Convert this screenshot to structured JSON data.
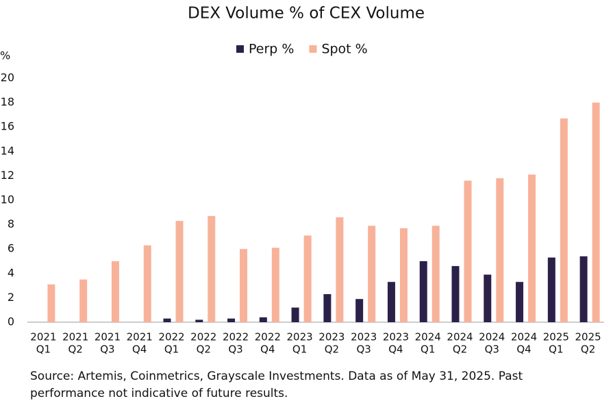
{
  "chart_data": {
    "type": "bar",
    "title": "DEX Volume % of CEX Volume",
    "y_axis_label": "%",
    "categories": [
      [
        "2021",
        "Q1"
      ],
      [
        "2021",
        "Q2"
      ],
      [
        "2021",
        "Q3"
      ],
      [
        "2021",
        "Q4"
      ],
      [
        "2022",
        "Q1"
      ],
      [
        "2022",
        "Q2"
      ],
      [
        "2022",
        "Q3"
      ],
      [
        "2022",
        "Q4"
      ],
      [
        "2023",
        "Q1"
      ],
      [
        "2023",
        "Q2"
      ],
      [
        "2023",
        "Q3"
      ],
      [
        "2023",
        "Q4"
      ],
      [
        "2024",
        "Q1"
      ],
      [
        "2024",
        "Q2"
      ],
      [
        "2024",
        "Q3"
      ],
      [
        "2024",
        "Q4"
      ],
      [
        "2025",
        "Q1"
      ],
      [
        "2025",
        "Q2"
      ]
    ],
    "series": [
      {
        "name": "Perp %",
        "color": "#2b2148",
        "values": [
          0,
          0,
          0,
          0,
          0.3,
          0.2,
          0.3,
          0.4,
          1.2,
          2.3,
          1.9,
          3.3,
          5.0,
          4.6,
          3.9,
          3.3,
          5.3,
          5.4
        ]
      },
      {
        "name": "Spot %",
        "color": "#f8b29a",
        "values": [
          3.1,
          3.5,
          5.0,
          6.3,
          8.3,
          8.7,
          6.0,
          6.1,
          7.1,
          8.6,
          7.9,
          7.7,
          7.9,
          11.6,
          11.8,
          12.1,
          16.7,
          18.0
        ]
      }
    ],
    "ylim": [
      0,
      20
    ],
    "yticks": [
      0,
      2,
      4,
      6,
      8,
      10,
      12,
      14,
      16,
      18,
      20
    ],
    "grid": false,
    "legend": "top",
    "source": "Source: Artemis, Coinmetrics, Grayscale Investments. Data as of May 31, 2025. Past performance not indicative of future results."
  }
}
